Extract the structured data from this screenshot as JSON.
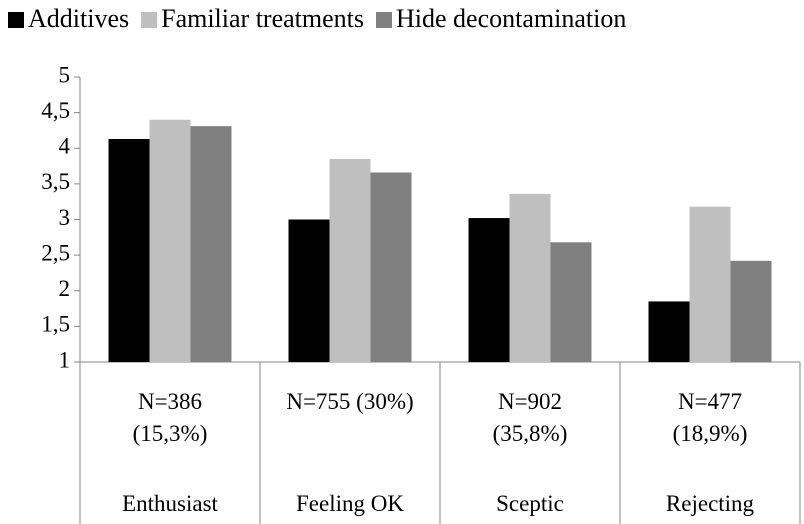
{
  "chart_data": {
    "type": "bar",
    "categories": [
      "Enthusiast",
      "Feeling OK",
      "Sceptic",
      "Rejecting"
    ],
    "category_sublabels": [
      "N=386 (15,3%)",
      "N=755 (30%)",
      "N=902 (35,8%)",
      "N=477 (18,9%)"
    ],
    "series": [
      {
        "name": "Additives",
        "color": "#000000",
        "values": [
          4.13,
          3.0,
          3.02,
          1.85
        ]
      },
      {
        "name": "Familiar treatments",
        "color": "#bfbfbf",
        "values": [
          4.4,
          3.85,
          3.36,
          3.18
        ]
      },
      {
        "name": "Hide decontamination",
        "color": "#808080",
        "values": [
          4.31,
          3.66,
          2.68,
          2.42
        ]
      }
    ],
    "ylim": [
      1,
      5
    ],
    "yticks": [
      1,
      {
        "value": 1.5,
        "label": "1,5"
      },
      2,
      {
        "value": 2.5,
        "label": "2,5"
      },
      3,
      {
        "value": 3.5,
        "label": "3,5"
      },
      4,
      {
        "value": 4.5,
        "label": "4,5"
      },
      5
    ],
    "grid": false,
    "legend": "top"
  }
}
